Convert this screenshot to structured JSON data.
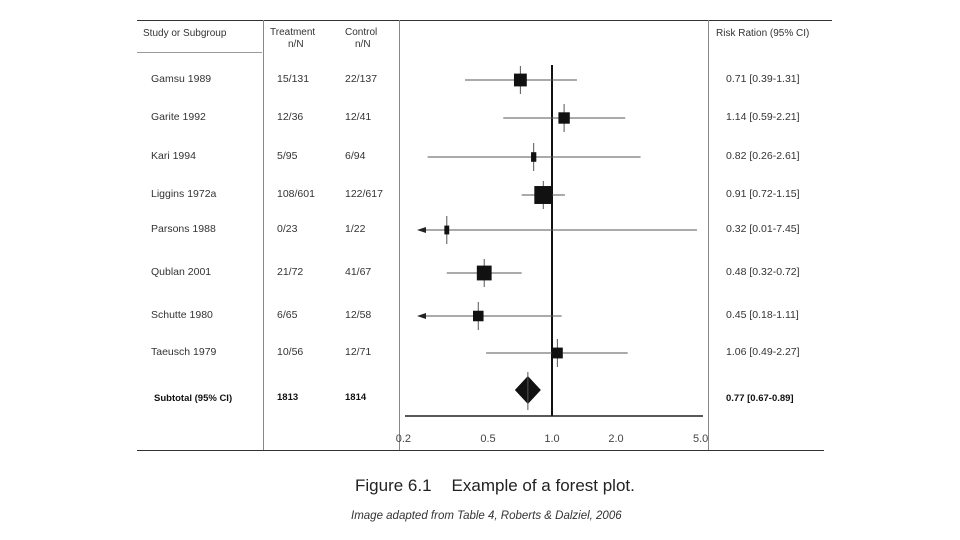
{
  "table": {
    "headers": {
      "study": "Study or Subgroup",
      "treatment": [
        "Treatment",
        "n/N"
      ],
      "control": [
        "Control",
        "n/N"
      ],
      "ratio": "Risk Ration (95% CI)"
    }
  },
  "chart_data": {
    "type": "forest",
    "scale": "log",
    "x_ticks": [
      0.2,
      0.5,
      1.0,
      2.0,
      5.0
    ],
    "x_tick_labels": [
      "0.2",
      "0.5",
      "1.0",
      "2.0",
      "5.0"
    ],
    "reference_line": 1.0,
    "studies": [
      {
        "study": "Gamsu 1989",
        "treatment": "15/131",
        "control": "22/137",
        "rr": 0.71,
        "lo": 0.39,
        "hi": 1.31,
        "ci_text": "0.71 [0.39-1.31]",
        "weight": 2
      },
      {
        "study": "Garite 1992",
        "treatment": "12/36",
        "control": "12/41",
        "rr": 1.14,
        "lo": 0.59,
        "hi": 2.21,
        "ci_text": "1.14 [0.59-2.21]",
        "weight": 1.4
      },
      {
        "study": "Kari 1994",
        "treatment": "5/95",
        "control": "6/94",
        "rr": 0.82,
        "lo": 0.26,
        "hi": 2.61,
        "ci_text": "0.82 [0.26-2.61]",
        "weight": 0.8
      },
      {
        "study": "Liggins 1972a",
        "treatment": "108/601",
        "control": "122/617",
        "rr": 0.91,
        "lo": 0.72,
        "hi": 1.15,
        "ci_text": "0.91 [0.72-1.15]",
        "weight": 5
      },
      {
        "study": "Parsons 1988",
        "treatment": "0/23",
        "control": "1/22",
        "rr": 0.32,
        "lo": 0.01,
        "hi": 7.45,
        "ci_text": "0.32 [0.01-7.45]",
        "weight": 0.6
      },
      {
        "study": "Qublan 2001",
        "treatment": "21/72",
        "control": "41/67",
        "rr": 0.48,
        "lo": 0.32,
        "hi": 0.72,
        "ci_text": "0.48 [0.32-0.72]",
        "weight": 3
      },
      {
        "study": "Schutte 1980",
        "treatment": "6/65",
        "control": "12/58",
        "rr": 0.45,
        "lo": 0.18,
        "hi": 1.11,
        "ci_text": "0.45 [0.18-1.11]",
        "weight": 1.1
      },
      {
        "study": "Taeusch 1979",
        "treatment": "10/56",
        "control": "12/71",
        "rr": 1.06,
        "lo": 0.49,
        "hi": 2.27,
        "ci_text": "1.06 [0.49-2.27]",
        "weight": 1.2
      }
    ],
    "subtotal": {
      "label": "Subtotal (95% CI)",
      "treatment": "1813",
      "control": "1814",
      "rr": 0.77,
      "lo": 0.67,
      "hi": 0.89,
      "ci_text": "0.77 [0.67-0.89]"
    }
  },
  "caption": {
    "figure": "Figure 6.1",
    "title": "Example of a forest plot."
  },
  "source": "Image adapted from Table 4, Roberts & Dalziel, 2006"
}
